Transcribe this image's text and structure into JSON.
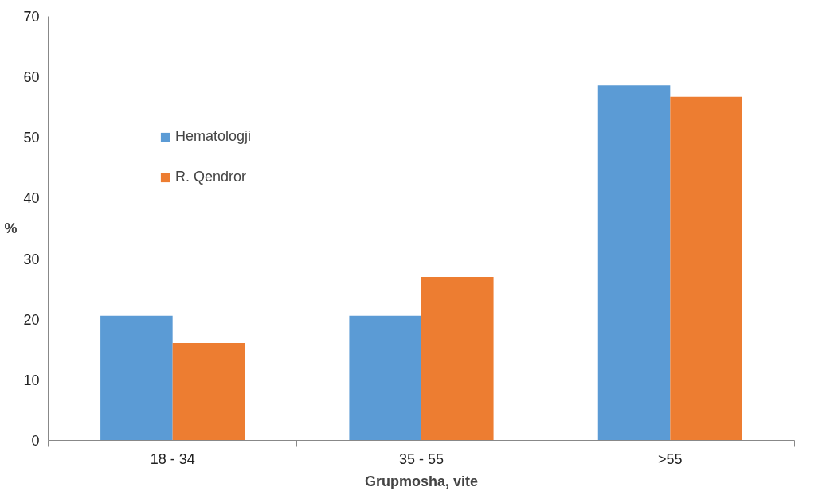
{
  "chart_data": {
    "type": "bar",
    "xlabel": "Grupmosha, vite",
    "ylabel": "%",
    "categories": [
      "18 - 34",
      "35 - 55",
      ">55"
    ],
    "series": [
      {
        "name": "Hematologji",
        "color": "#5b9bd5",
        "values": [
          20.6,
          20.6,
          58.6
        ]
      },
      {
        "name": "R. Qendror",
        "color": "#ed7d31",
        "values": [
          16.1,
          27.0,
          56.7
        ]
      }
    ],
    "ylim": [
      0,
      70
    ],
    "yticks": [
      0,
      10,
      20,
      30,
      40,
      50,
      60,
      70
    ],
    "grid": false,
    "legend": "top left"
  }
}
